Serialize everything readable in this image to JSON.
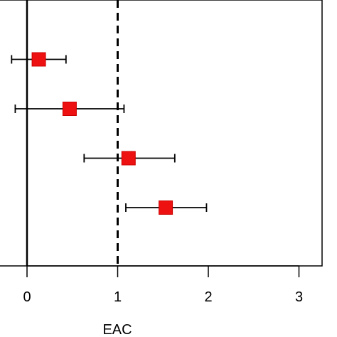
{
  "chart_data": {
    "type": "scatter",
    "title": "",
    "xlabel": "EAC",
    "ylabel": "",
    "xlim": [
      -0.3,
      3.25
    ],
    "x_ticks": [
      0,
      1,
      2,
      3
    ],
    "x_tick_labels": [
      "0",
      "1",
      "2",
      "3"
    ],
    "reference_lines": [
      {
        "x": 0,
        "style": "solid"
      },
      {
        "x": 1,
        "style": "dashed"
      }
    ],
    "series": [
      {
        "points": [
          {
            "row": 1,
            "estimate": 0.13,
            "ci_low": -0.17,
            "ci_high": 0.43
          },
          {
            "row": 2,
            "estimate": 0.47,
            "ci_low": -0.13,
            "ci_high": 1.07
          },
          {
            "row": 3,
            "estimate": 1.12,
            "ci_low": 0.63,
            "ci_high": 1.63
          },
          {
            "row": 4,
            "estimate": 1.53,
            "ci_low": 1.09,
            "ci_high": 1.98
          }
        ]
      }
    ],
    "grid": false,
    "legend": "none",
    "colors": {
      "marker": "#ee1111",
      "marker_edge": "#cc0000",
      "error_bar": "#000000",
      "axis": "#000000"
    },
    "marker_shape": "square"
  }
}
